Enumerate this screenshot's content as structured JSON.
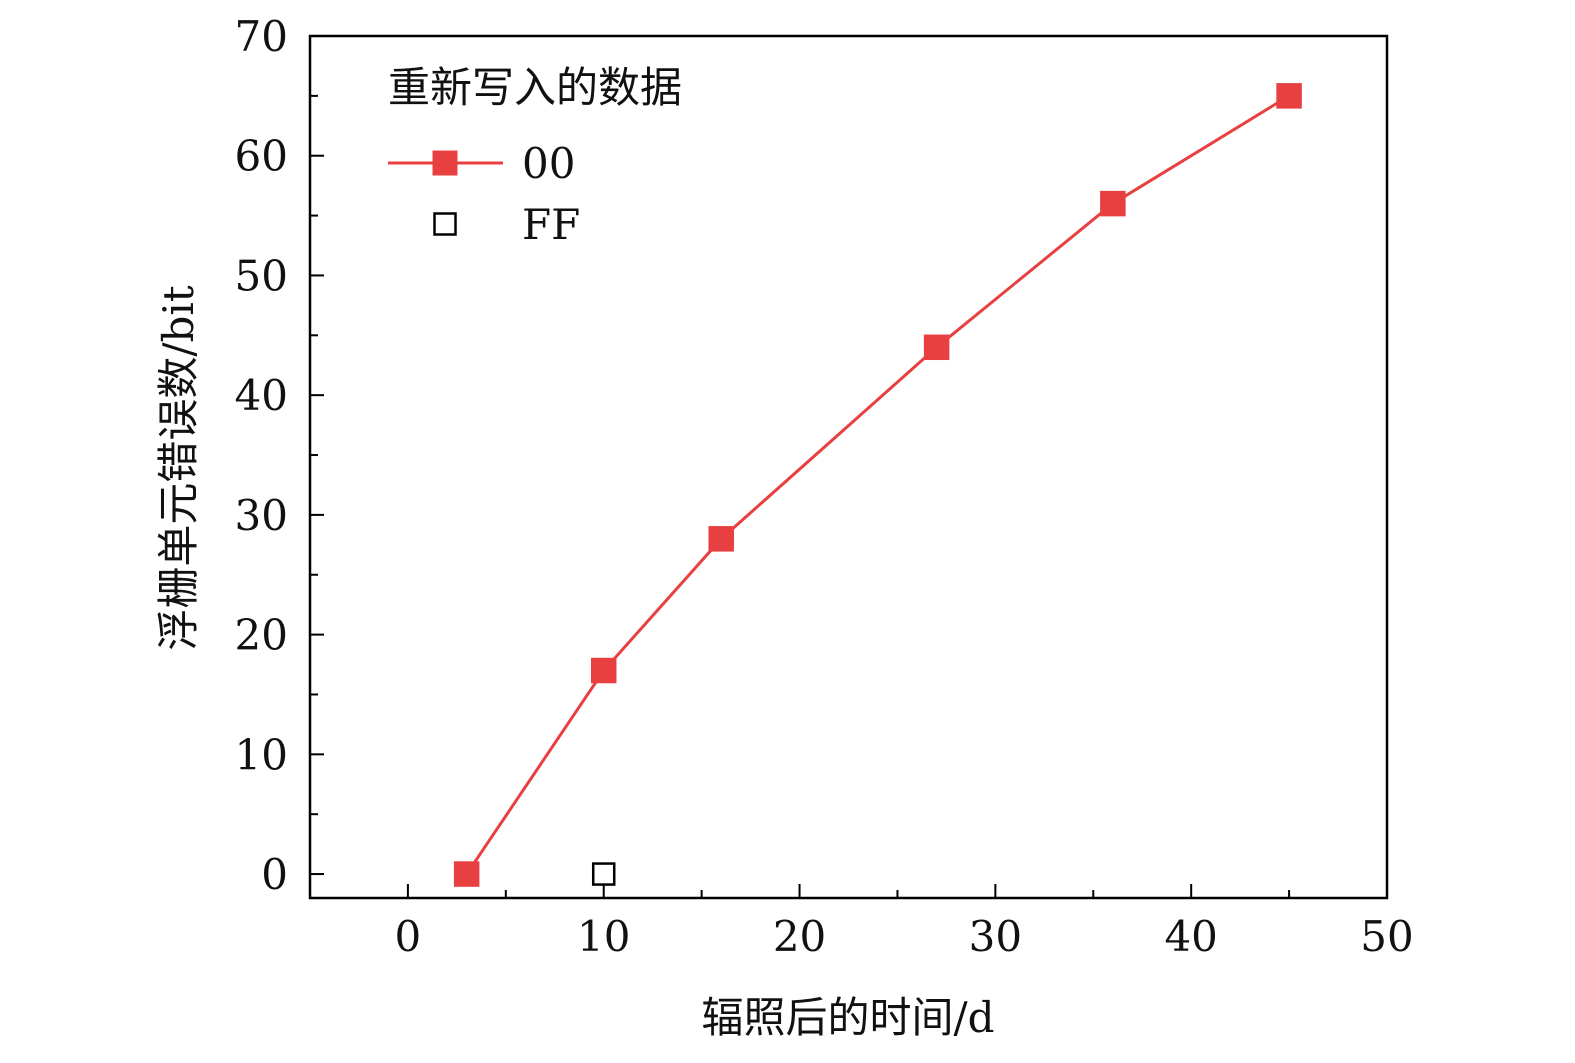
{
  "chart_data": {
    "type": "line",
    "xlabel": "辐照后的时间/d",
    "ylabel": "浮栅单元错误数/bit",
    "xlim": [
      -5,
      50
    ],
    "ylim": [
      -2,
      70
    ],
    "x_ticks": [
      0,
      10,
      20,
      30,
      40,
      50
    ],
    "y_ticks": [
      0,
      10,
      20,
      30,
      40,
      50,
      60,
      70
    ],
    "grid": false,
    "legend": {
      "title": "重新写入的数据",
      "placement": "top-left"
    },
    "series": [
      {
        "name": "00",
        "color": "#e84040",
        "marker": "filled-square",
        "line": true,
        "x": [
          3,
          10,
          16,
          27,
          36,
          45
        ],
        "y": [
          0,
          17,
          28,
          44,
          56,
          65
        ]
      },
      {
        "name": "FF",
        "color": "#000000",
        "marker": "open-square",
        "line": false,
        "x": [
          10
        ],
        "y": [
          0
        ]
      }
    ]
  }
}
